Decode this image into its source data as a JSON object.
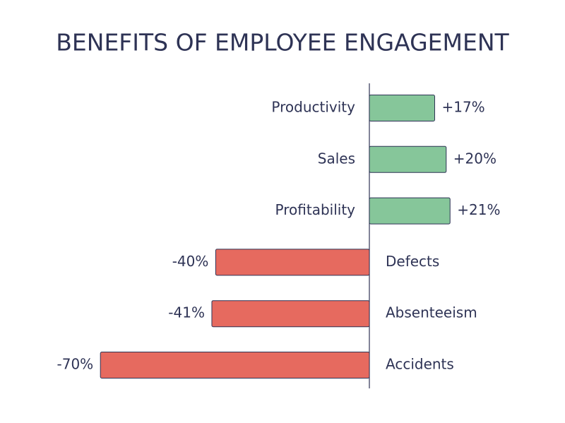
{
  "chart_data": {
    "type": "diverging-bar",
    "title": "BENEFITS OF EMPLOYEE ENGAGEMENT",
    "categories": [
      "Productivity",
      "Sales",
      "Profitability",
      "Defects",
      "Absenteeism",
      "Accidents"
    ],
    "values": [
      17,
      20,
      21,
      -40,
      -41,
      -70
    ],
    "value_labels": [
      "+17%",
      "+20%",
      "+21%",
      "-40%",
      "-41%",
      "-70%"
    ],
    "colors": {
      "positive": "#86c69a",
      "negative": "#e66a5f"
    }
  }
}
